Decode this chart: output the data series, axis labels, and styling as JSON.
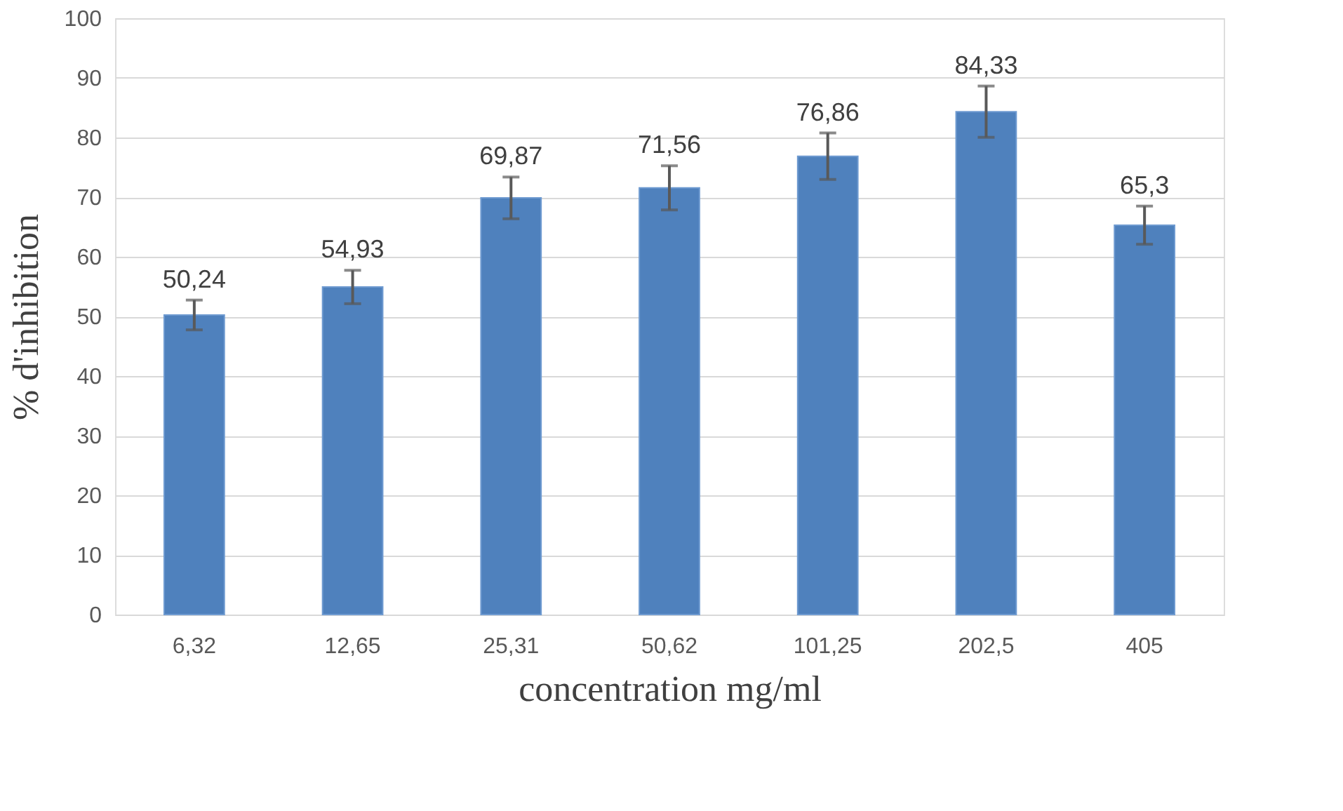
{
  "chart_data": {
    "type": "bar",
    "xlabel": "concentration mg/ml",
    "ylabel": "% d'inhibition",
    "categories": [
      "6,32",
      "12,65",
      "25,31",
      "50,62",
      "101,25",
      "202,5",
      "405"
    ],
    "values": [
      50.24,
      54.93,
      69.87,
      71.56,
      76.86,
      84.33,
      65.3
    ],
    "value_labels": [
      "50,24",
      "54,93",
      "69,87",
      "71,56",
      "76,86",
      "84,33",
      "65,3"
    ],
    "errors": [
      2.5,
      2.8,
      3.5,
      3.7,
      3.9,
      4.3,
      3.2
    ],
    "color": "#4f81bd",
    "ylim": [
      0,
      100
    ],
    "yticks": [
      0,
      10,
      20,
      30,
      40,
      50,
      60,
      70,
      80,
      90,
      100
    ],
    "grid": "y"
  }
}
